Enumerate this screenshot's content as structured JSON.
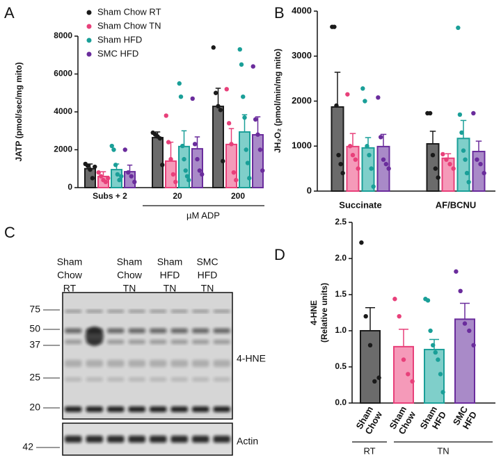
{
  "chart_data": [
    {
      "type": "bar",
      "panel_label": "A",
      "y_label": "JATP (pmol/sec/mg mito)",
      "categories": [
        "Subs + 2",
        "20",
        "200"
      ],
      "x_group_label": "µM ADP",
      "ylim": [
        0,
        8000
      ],
      "yticks": [
        0,
        2000,
        4000,
        6000,
        8000
      ],
      "series": [
        {
          "name": "Sham Chow RT",
          "color": "#1a1a1a",
          "fill": "#6b6b6b",
          "values": [
            1000,
            2640,
            4290
          ],
          "errors": [
            250,
            300,
            960
          ],
          "points": [
            [
              1250,
              1150,
              950,
              500,
              1100
            ],
            [
              2900,
              2800,
              2700,
              2600,
              1200
            ],
            [
              7400,
              5000,
              4300,
              4100,
              1400
            ]
          ]
        },
        {
          "name": "Sham Chow TN",
          "color": "#e8407a",
          "fill": "#f59ab9",
          "values": [
            590,
            1400,
            2280
          ],
          "errors": [
            250,
            1000,
            840
          ],
          "points": [
            [
              800,
              600,
              400,
              300,
              500
            ],
            [
              3800,
              2400,
              1500,
              700,
              300
            ],
            [
              5200,
              3400,
              2300,
              800,
              400
            ]
          ]
        },
        {
          "name": "Sham HFD",
          "color": "#1a9f98",
          "fill": "#7fcfca",
          "values": [
            950,
            2170,
            2940
          ],
          "errors": [
            300,
            830,
            910
          ],
          "points": [
            [
              2200,
              2000,
              1200,
              700,
              400,
              600
            ],
            [
              5500,
              4800,
              2200,
              1500,
              900,
              600,
              400
            ],
            [
              7300,
              6500,
              4800,
              3700,
              2000,
              1300,
              500
            ]
          ]
        },
        {
          "name": "SMC HFD",
          "color": "#6a2c9c",
          "fill": "#a98ac8",
          "values": [
            840,
            2050,
            2790
          ],
          "errors": [
            350,
            630,
            950
          ],
          "points": [
            [
              2000,
              800,
              600,
              300
            ],
            [
              4700,
              2300,
              1500,
              900,
              700
            ],
            [
              6400,
              3600,
              2800,
              2000,
              900
            ]
          ]
        }
      ]
    },
    {
      "type": "bar",
      "panel_label": "B",
      "y_label": "JH₂O₂ (pmol/min/mg mito)",
      "categories": [
        "Succinate",
        "AF/BCNU"
      ],
      "ylim": [
        0,
        4000
      ],
      "yticks": [
        0,
        1000,
        2000,
        3000,
        4000
      ],
      "series": [
        {
          "color": "#1a1a1a",
          "fill": "#6b6b6b",
          "values": [
            1870,
            1050
          ],
          "errors": [
            770,
            280
          ],
          "points": [
            [
              3650,
              3650,
              1900,
              800,
              600,
              400
            ],
            [
              1730,
              1730,
              800,
              500,
              300
            ]
          ]
        },
        {
          "color": "#e8407a",
          "fill": "#f59ab9",
          "values": [
            990,
            730
          ],
          "errors": [
            290,
            100
          ],
          "points": [
            [
              2150,
              1000,
              800,
              700,
              500
            ],
            [
              820,
              700,
              600,
              500
            ]
          ]
        },
        {
          "color": "#1a9f98",
          "fill": "#7fcfca",
          "values": [
            960,
            1170
          ],
          "errors": [
            230,
            400
          ],
          "points": [
            [
              2280,
              2000,
              1000,
              800,
              500,
              100
            ],
            [
              3630,
              1700,
              1300,
              900,
              700,
              400,
              200
            ]
          ]
        },
        {
          "color": "#6a2c9c",
          "fill": "#a98ac8",
          "values": [
            990,
            880
          ],
          "errors": [
            270,
            230
          ],
          "points": [
            [
              2080,
              1200,
              700,
              600,
              500
            ],
            [
              1730,
              700,
              600,
              400
            ]
          ]
        }
      ]
    },
    {
      "type": "bar",
      "panel_label": "D",
      "y_label": [
        "4-HNE",
        "(Relative units)"
      ],
      "categories": [
        [
          "Sham",
          "Chow"
        ],
        [
          "Sham",
          "Chow"
        ],
        [
          "Sham",
          "HFD"
        ],
        [
          "SMC",
          "HFD"
        ]
      ],
      "group_labels": [
        "RT",
        "TN"
      ],
      "ylim": [
        0,
        2.5
      ],
      "yticks": [
        {
          "value": 0,
          "label": "0.0"
        },
        0.5,
        {
          "value": 1,
          "label": "1.0"
        },
        1.5,
        {
          "value": 2,
          "label": "2.0"
        },
        2.5
      ],
      "colors": [
        "#1a1a1a",
        "#e8407a",
        "#1a9f98",
        "#6a2c9c"
      ],
      "fills": [
        "#6b6b6b",
        "#f59ab9",
        "#7fcfca",
        "#a98ac8"
      ],
      "values": [
        1.0,
        0.78,
        0.74,
        1.16
      ],
      "errors": [
        0.32,
        0.24,
        0.14,
        0.22
      ],
      "points": [
        [
          2.22,
          1.2,
          0.8,
          0.3,
          0.35
        ],
        [
          1.44,
          1.2,
          0.6,
          0.4,
          0.3
        ],
        [
          1.44,
          1.42,
          1.0,
          0.8,
          0.7,
          0.6,
          0.4,
          0.15
        ],
        [
          1.82,
          1.55,
          1.1,
          1.0,
          0.8
        ]
      ]
    }
  ],
  "blot": {
    "panel_label": "C",
    "lanes": [
      [
        "Sham",
        "Chow",
        "RT"
      ],
      [
        "Sham",
        "Chow",
        "TN"
      ],
      [
        "Sham",
        "HFD",
        "TN"
      ],
      [
        "SMC",
        "HFD",
        "TN"
      ]
    ],
    "markers": [
      75,
      50,
      37,
      25,
      20
    ],
    "actin_marker": 42,
    "labels": [
      "4-HNE",
      "Actin"
    ]
  }
}
